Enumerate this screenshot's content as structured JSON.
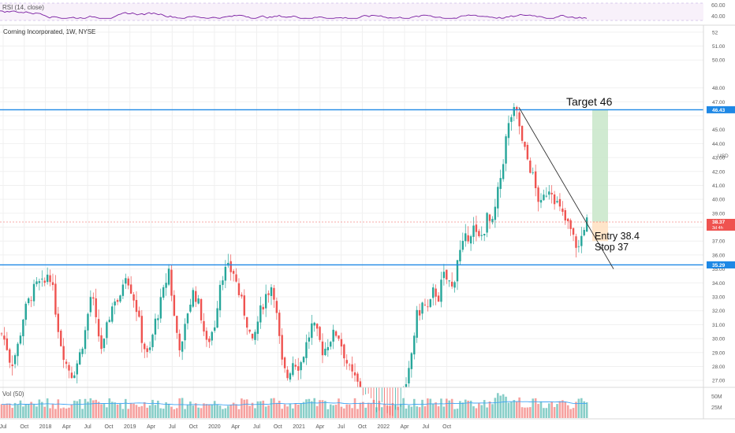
{
  "chart_data": {
    "type": "candlestick",
    "title": "Corning Incorporated, 1W, NYSE",
    "currency": "USD",
    "price_axis": {
      "range": [
        26.5,
        52.5
      ],
      "ticks": [
        27.0,
        28.0,
        29.0,
        30.0,
        31.0,
        32.0,
        33.0,
        34.0,
        35.0,
        36.0,
        37.0,
        38.0,
        39.0,
        40.0,
        41.0,
        42.0,
        43.0,
        44.0,
        45.0,
        46.0,
        47.0,
        48.0,
        50.0,
        51.0,
        52.0
      ],
      "tick_labels": [
        "27.00",
        "28.00",
        "29.00",
        "30.00",
        "31.00",
        "32.00",
        "33.00",
        "34.00",
        "35.00",
        "36.00",
        "37.00",
        "",
        "39.00",
        "40.00",
        "41.00",
        "42.00",
        "43.00",
        "44.00",
        "45.00",
        "",
        "47.00",
        "48.00",
        "50.00",
        "51.00",
        "52"
      ]
    },
    "time_axis": {
      "labels": [
        "Jul",
        "Oct",
        "2018",
        "Apr",
        "Jul",
        "Oct",
        "2019",
        "Apr",
        "Jul",
        "Oct",
        "2020",
        "Apr",
        "Jul",
        "Oct",
        "2021",
        "Apr",
        "Jul",
        "Oct",
        "2022",
        "Apr",
        "Jul",
        "Oct"
      ]
    },
    "horizontal_levels": [
      {
        "price": 46.43,
        "label": "46.43",
        "color": "#1e88e5"
      },
      {
        "price": 35.29,
        "label": "35.29",
        "color": "#1e88e5"
      }
    ],
    "current_price": {
      "price": 38.37,
      "label": "38.37",
      "sublabel": "3d 4h",
      "color": "#ef5350"
    },
    "trendline": {
      "from": [
        "2021-04",
        46.6
      ],
      "to": [
        "2021-11",
        35.0
      ]
    },
    "position": {
      "entry": 38.4,
      "stop": 37.0,
      "target": 46.43
    },
    "annotations": [
      "Target 46",
      "Entry 38.4",
      "Stop 37"
    ],
    "rsi": {
      "label": "RSI (14, close)",
      "ticks": [
        "60.00",
        "40.00"
      ]
    },
    "volume": {
      "label": "Vol (50)",
      "ticks": [
        "50M",
        "25M"
      ]
    },
    "colors": {
      "up": "#26a69a",
      "down": "#ef5350",
      "level": "#1e88e5",
      "rsi": "#7b1fa2",
      "target_zone": "#c8e6c9",
      "stop_zone": "#ffe0c0"
    }
  }
}
